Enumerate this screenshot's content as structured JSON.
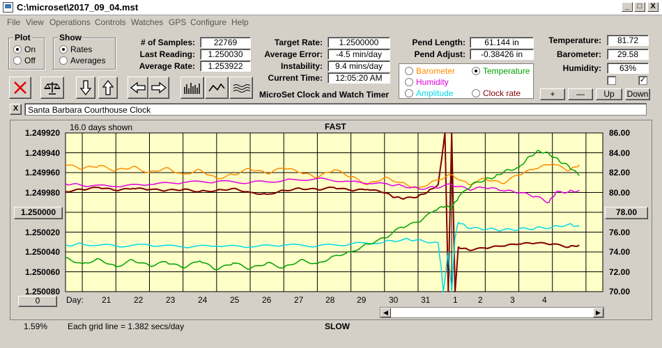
{
  "window": {
    "title": "C:\\microset\\2017_09_04.mst",
    "minimize_glyph": "_",
    "maximize_glyph": "□",
    "close_glyph": "X"
  },
  "menu": [
    "File",
    "View",
    "Operations",
    "Controls",
    "Watches",
    "GPS",
    "Configure",
    "Help"
  ],
  "plot_group": {
    "title": "Plot",
    "on": "On",
    "off": "Off",
    "selected": "On"
  },
  "show_group": {
    "title": "Show",
    "rates": "Rates",
    "averages": "Averages",
    "selected": "Rates"
  },
  "stats": {
    "samples_label": "# of Samples:",
    "samples": "22769",
    "last_reading_label": "Last Reading:",
    "last_reading": "1.250030",
    "avg_rate_label": "Average Rate:",
    "avg_rate": "1.253922",
    "target_rate_label": "Target Rate:",
    "target_rate": "1.2500000",
    "avg_error_label": "Average Error:",
    "avg_error": "-4.5 min/day",
    "instability_label": "Instability:",
    "instability": "9.4 mins/day",
    "current_time_label": "Current Time:",
    "current_time": "12:05:20 AM",
    "app_caption": "MicroSet Clock and Watch Timer",
    "pend_length_label": "Pend Length:",
    "pend_length": "61.144 in",
    "pend_adjust_label": "Pend Adjust:",
    "pend_adjust": "-0.38426 in",
    "temperature_label": "Temperature:",
    "temperature": "81.72",
    "barometer_label": "Barometer:",
    "barometer": "29.58",
    "humidity_label": "Humidity:",
    "humidity": "63%"
  },
  "sensor_options": {
    "barometer": "Barometer",
    "temperature": "Temperature",
    "humidity": "Humidity",
    "amplitude": "Amplitude",
    "clock_rate": "Clock rate",
    "selected": "Temperature",
    "colors": {
      "barometer": "#ff8c00",
      "temperature": "#00a000",
      "humidity": "#e000e0",
      "amplitude": "#00d8e8",
      "clock_rate": "#800000"
    }
  },
  "adjust_buttons": {
    "plus": "+",
    "minus": "—",
    "up": "Up",
    "down": "Down"
  },
  "clock_name": {
    "close_glyph": "X",
    "value": "Santa Barbara Courthouse Clock"
  },
  "chart_data": {
    "type": "line",
    "days_shown": "16.0 days shown",
    "top_label": "FAST",
    "bottom_label": "SLOW",
    "grid_note": "Each grid line = 1.382 secs/day",
    "percent": "1.59%",
    "x_axis_label": "Day:",
    "x_ticks": [
      "21",
      "22",
      "23",
      "24",
      "25",
      "26",
      "27",
      "28",
      "29",
      "30",
      "31",
      "1",
      "2",
      "3",
      "4"
    ],
    "left_ticks": [
      "1.249920",
      "1.249940",
      "1.249960",
      "1.249980",
      "1.250000",
      "1.250020",
      "1.250040",
      "1.250060",
      "1.250080"
    ],
    "left_ylim": [
      1.24992,
      1.25008
    ],
    "right_ticks": [
      "86.00",
      "84.00",
      "82.00",
      "80.00",
      "78.00",
      "76.00",
      "74.00",
      "72.00",
      "70.00"
    ],
    "right_ylim": [
      70,
      86
    ],
    "left_center_button": "1.250000",
    "right_center_button": "78.00",
    "scroll_button": "0",
    "x_range": [
      20.5,
      36.5
    ],
    "plot_bg": "#ffffc8",
    "series": [
      {
        "name": "Clock rate",
        "axis": "left",
        "color": "#800000",
        "x": [
          20.5,
          21,
          21.5,
          22,
          22.5,
          23,
          23.5,
          24,
          24.5,
          25,
          25.5,
          26,
          26.5,
          27,
          27.5,
          28,
          28.5,
          29,
          29.5,
          30,
          30.3,
          30.6,
          31,
          31.3,
          31.6,
          31.8,
          31.9,
          32.0,
          32.1,
          32.2,
          32.5,
          33,
          33.5,
          34,
          34.5,
          35,
          35.5,
          35.8
        ],
        "y": [
          1.249979,
          1.249977,
          1.249975,
          1.249978,
          1.249976,
          1.249977,
          1.249978,
          1.249977,
          1.249979,
          1.249978,
          1.249976,
          1.24998,
          1.249982,
          1.249978,
          1.249976,
          1.249977,
          1.249975,
          1.249978,
          1.249977,
          1.24998,
          1.249985,
          1.249986,
          1.249984,
          1.249979,
          1.249972,
          1.24992,
          1.25008,
          1.24992,
          1.25008,
          1.250035,
          1.250038,
          1.250036,
          1.250034,
          1.250032,
          1.250031,
          1.250032,
          1.250035,
          1.250033
        ]
      },
      {
        "name": "Barometer",
        "axis": "right",
        "color": "#ff8c00",
        "x": [
          20.5,
          21,
          21.5,
          22,
          22.5,
          23,
          23.5,
          24,
          24.5,
          25,
          25.5,
          26,
          26.5,
          27,
          27.5,
          28,
          28.5,
          29,
          29.5,
          30,
          30.5,
          31,
          31.5,
          32,
          32.5,
          33,
          33.5,
          34,
          34.5,
          35,
          35.5,
          35.8
        ],
        "y": [
          82.8,
          82.4,
          82.7,
          82.2,
          82.6,
          82.0,
          82.5,
          81.8,
          82.3,
          81.4,
          81.8,
          82.4,
          81.9,
          82.5,
          82.0,
          81.5,
          82.3,
          81.6,
          80.8,
          81.5,
          81.0,
          80.4,
          81.2,
          81.8,
          80.8,
          81.4,
          80.9,
          81.8,
          82.4,
          82.9,
          82.2,
          82.8
        ]
      },
      {
        "name": "Humidity",
        "axis": "right",
        "color": "#e000e0",
        "x": [
          20.5,
          21,
          22,
          23,
          24,
          25,
          26,
          27,
          28,
          29,
          30,
          30.5,
          31,
          31.5,
          32,
          32.5,
          33,
          33.5,
          34,
          34.5,
          34.9,
          35.1,
          35.5,
          35.8
        ],
        "y": [
          80.9,
          80.7,
          80.6,
          80.8,
          81.0,
          81.1,
          81.0,
          81.2,
          81.4,
          81.1,
          80.9,
          80.7,
          80.4,
          80.5,
          80.8,
          80.3,
          80.5,
          80.2,
          80.0,
          79.6,
          79.0,
          80.0,
          80.1,
          80.2
        ]
      },
      {
        "name": "Amplitude",
        "axis": "right",
        "color": "#00d8e8",
        "x": [
          20.5,
          21,
          22,
          23,
          24,
          25,
          26,
          27,
          28,
          29,
          30,
          30.6,
          31,
          31.6,
          31.7,
          31.75,
          31.9,
          32.0,
          32.1,
          32.2,
          32.5,
          33,
          33.5,
          34,
          34.5,
          35,
          35.5,
          35.8
        ],
        "y": [
          74.7,
          74.8,
          74.6,
          74.7,
          74.5,
          74.6,
          74.5,
          74.7,
          74.6,
          74.8,
          75.0,
          75.3,
          75.2,
          74.9,
          72.0,
          70.0,
          74.0,
          70.0,
          75.5,
          77.0,
          76.4,
          76.3,
          76.2,
          76.3,
          76.4,
          76.5,
          76.8,
          76.6
        ]
      },
      {
        "name": "Temperature",
        "axis": "right",
        "color": "#00a000",
        "x": [
          20.5,
          21,
          21.5,
          22,
          22.5,
          23,
          23.5,
          24,
          24.5,
          25,
          25.5,
          26,
          26.5,
          27,
          27.5,
          28,
          28.5,
          29,
          29.5,
          30,
          30.5,
          31,
          31.5,
          31.8,
          32,
          32.2,
          32.6,
          33,
          33.3,
          33.6,
          34,
          34.3,
          34.6,
          34.9,
          35.2,
          35.5,
          35.8
        ],
        "y": [
          73.4,
          72.8,
          73.3,
          72.5,
          73.2,
          72.6,
          73.0,
          72.4,
          73.1,
          72.2,
          72.9,
          72.3,
          72.9,
          72.4,
          73.2,
          72.8,
          73.6,
          74.0,
          74.8,
          75.4,
          76.5,
          77.0,
          78.2,
          78.6,
          78.4,
          79.5,
          80.8,
          81.3,
          81.6,
          82.2,
          82.5,
          83.6,
          84.2,
          83.9,
          83.2,
          82.6,
          81.7
        ]
      }
    ]
  }
}
